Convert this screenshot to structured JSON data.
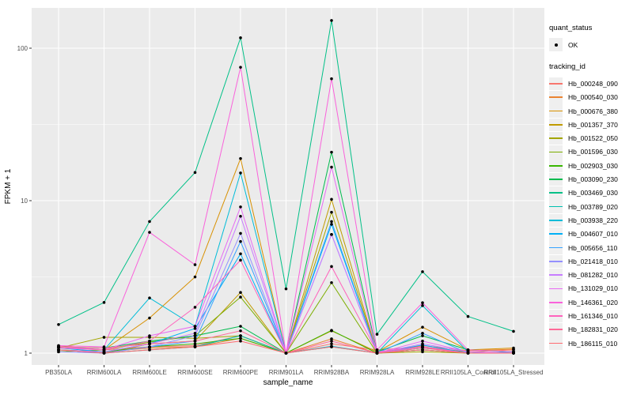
{
  "chart_data": {
    "type": "line",
    "title": "",
    "xlabel": "sample_name",
    "ylabel": "FPKM + 1",
    "y_scale": "log10",
    "y_ticks": [
      1,
      10,
      100
    ],
    "y_minor_ticks": [
      3.1623,
      31.6228
    ],
    "ylim": [
      0.84,
      184
    ],
    "grid": "on",
    "legend_position": "right",
    "panel_bg": "#EBEBEB",
    "grid_color": "#FFFFFF",
    "tick_label_color": "#4D4D4D",
    "point_color": "#000000",
    "categories": [
      "PB350LA",
      "RRIM600LA",
      "RRIM600LE",
      "RRIM600SE",
      "RRIM600PE",
      "RRIM901LA",
      "RRIM928BA",
      "RRIM928LA",
      "RRIM928LE",
      "RRII105LA_Control",
      "RRII105LA_Stressed"
    ],
    "series": [
      {
        "name": "Hb_000248_090",
        "color": "#F8766D",
        "values": [
          1.12,
          1.05,
          1.1,
          1.12,
          1.3,
          1.0,
          1.15,
          1.05,
          1.1,
          1.02,
          1.05
        ]
      },
      {
        "name": "Hb_000540_030",
        "color": "#EA8331",
        "values": [
          1.05,
          1.02,
          1.08,
          1.1,
          1.25,
          1.0,
          1.24,
          1.0,
          1.12,
          1.04,
          1.06
        ]
      },
      {
        "name": "Hb_000676_380",
        "color": "#D89000",
        "values": [
          1.1,
          1.05,
          1.7,
          3.16,
          18.9,
          1.0,
          1.4,
          1.02,
          1.48,
          1.05,
          1.08
        ]
      },
      {
        "name": "Hb_001357_370",
        "color": "#C09B00",
        "values": [
          1.05,
          1.0,
          1.15,
          1.2,
          2.5,
          1.0,
          10.2,
          1.0,
          1.05,
          1.0,
          1.02
        ]
      },
      {
        "name": "Hb_001522_050",
        "color": "#A3A500",
        "values": [
          1.08,
          1.27,
          1.27,
          1.25,
          1.3,
          1.0,
          8.4,
          1.0,
          1.02,
          1.0,
          1.0
        ]
      },
      {
        "name": "Hb_001596_030",
        "color": "#7CAE00",
        "values": [
          1.02,
          1.05,
          1.18,
          1.3,
          2.33,
          1.0,
          2.9,
          1.0,
          1.05,
          1.0,
          1.0
        ]
      },
      {
        "name": "Hb_002903_030",
        "color": "#39B600",
        "values": [
          1.05,
          1.02,
          1.1,
          1.15,
          1.25,
          1.0,
          1.41,
          1.0,
          1.08,
          1.02,
          1.0
        ]
      },
      {
        "name": "Hb_003090_230",
        "color": "#00BB4E",
        "values": [
          1.1,
          1.08,
          1.2,
          1.3,
          1.5,
          1.0,
          20.8,
          1.02,
          1.3,
          1.05,
          1.02
        ]
      },
      {
        "name": "Hb_003469_030",
        "color": "#00C087",
        "values": [
          1.54,
          2.15,
          7.3,
          15.3,
          117.0,
          2.64,
          152.0,
          1.33,
          3.42,
          1.74,
          1.39
        ]
      },
      {
        "name": "Hb_003789_020",
        "color": "#00C0AF",
        "values": [
          1.05,
          1.0,
          1.05,
          1.1,
          1.3,
          1.0,
          1.1,
          1.0,
          1.05,
          1.0,
          1.0
        ]
      },
      {
        "name": "Hb_003938_220",
        "color": "#00BCD8",
        "values": [
          1.1,
          1.05,
          2.3,
          1.5,
          15.2,
          1.0,
          1.11,
          1.0,
          2.05,
          1.02,
          1.0
        ]
      },
      {
        "name": "Hb_004607_010",
        "color": "#00B0F6",
        "values": [
          1.08,
          1.02,
          1.15,
          1.45,
          4.48,
          1.0,
          7.0,
          1.0,
          1.13,
          1.0,
          1.02
        ]
      },
      {
        "name": "Hb_005656_110",
        "color": "#35A2FF",
        "values": [
          1.05,
          1.0,
          1.1,
          1.2,
          5.4,
          1.0,
          7.3,
          1.0,
          1.35,
          1.0,
          1.0
        ]
      },
      {
        "name": "Hb_021418_010",
        "color": "#9590FF",
        "values": [
          1.02,
          1.0,
          1.1,
          1.3,
          6.1,
          1.0,
          6.0,
          1.0,
          1.1,
          1.0,
          1.0
        ]
      },
      {
        "name": "Hb_081282_010",
        "color": "#C77CFF",
        "values": [
          1.05,
          1.02,
          1.15,
          1.35,
          7.9,
          1.0,
          6.0,
          1.0,
          1.15,
          1.02,
          1.0
        ]
      },
      {
        "name": "Hb_131029_010",
        "color": "#E76BF3",
        "values": [
          1.1,
          1.05,
          1.3,
          1.5,
          9.1,
          1.0,
          16.6,
          1.0,
          1.2,
          1.02,
          1.0
        ]
      },
      {
        "name": "Hb_146361_020",
        "color": "#FA62DB",
        "values": [
          1.12,
          1.1,
          6.2,
          3.8,
          75.0,
          1.0,
          63.0,
          1.05,
          2.14,
          1.05,
          1.02
        ]
      },
      {
        "name": "Hb_161346_010",
        "color": "#FF62BC",
        "values": [
          1.08,
          1.05,
          1.2,
          2.0,
          4.07,
          1.0,
          3.7,
          1.02,
          1.1,
          1.0,
          1.0
        ]
      },
      {
        "name": "Hb_182831_020",
        "color": "#FF6A98",
        "values": [
          1.1,
          1.08,
          1.15,
          1.2,
          1.4,
          1.0,
          1.2,
          1.0,
          1.08,
          1.0,
          1.0
        ]
      },
      {
        "name": "Hb_186115_010",
        "color": "#FF6B70",
        "values": [
          1.05,
          1.0,
          1.05,
          1.1,
          1.2,
          1.0,
          1.1,
          1.0,
          1.05,
          1.0,
          1.0
        ]
      }
    ],
    "legend": {
      "quant_status_title": "quant_status",
      "quant_status_ok_label": "OK",
      "tracking_id_title": "tracking_id"
    }
  }
}
